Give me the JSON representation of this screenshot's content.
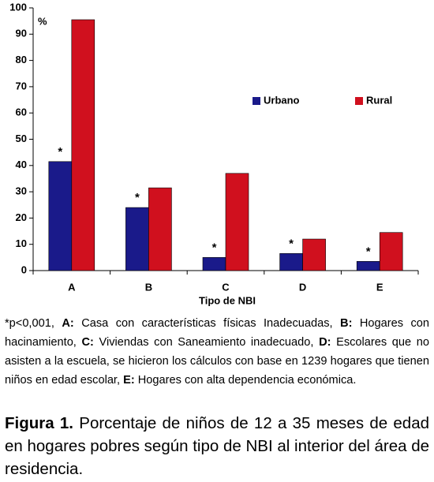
{
  "chart_data": {
    "type": "bar",
    "categories": [
      "A",
      "B",
      "C",
      "D",
      "E"
    ],
    "series": [
      {
        "name": "Urbano",
        "color": "#1a1a8a",
        "values": [
          41.5,
          24,
          5,
          6.5,
          3.5
        ]
      },
      {
        "name": "Rural",
        "color": "#d0101e",
        "values": [
          95.5,
          31.5,
          37,
          12,
          14.5
        ]
      }
    ],
    "significance_marks": [
      "*",
      "*",
      "*",
      "*",
      "*"
    ],
    "y_label": "%",
    "x_label": "Tipo de NBI",
    "ylim": [
      0,
      100
    ],
    "yticks": [
      0,
      10,
      20,
      30,
      40,
      50,
      60,
      70,
      80,
      90,
      100
    ],
    "grid": false,
    "legend_position": "upper right"
  },
  "footnote": {
    "intro": "*p<0,001,",
    "items": [
      {
        "key": "A:",
        "text": "Casa con características físicas Inadecuadas,"
      },
      {
        "key": "B:",
        "text": "Hogares con hacinamiento,"
      },
      {
        "key": "C:",
        "text": "Viviendas con Saneamiento inadecuado,"
      },
      {
        "key": "D:",
        "text": "Escolares que no asisten a la escuela, se hicieron los cálculos con base en 1239 hogares que tienen niños en edad escolar,"
      },
      {
        "key": "E:",
        "text": "Hogares con alta dependencia económica."
      }
    ]
  },
  "caption": {
    "label": "Figura 1.",
    "text": "Porcentaje de niños de 12 a 35 meses de edad en hogares pobres según tipo de NBI al interior del área de residencia."
  }
}
